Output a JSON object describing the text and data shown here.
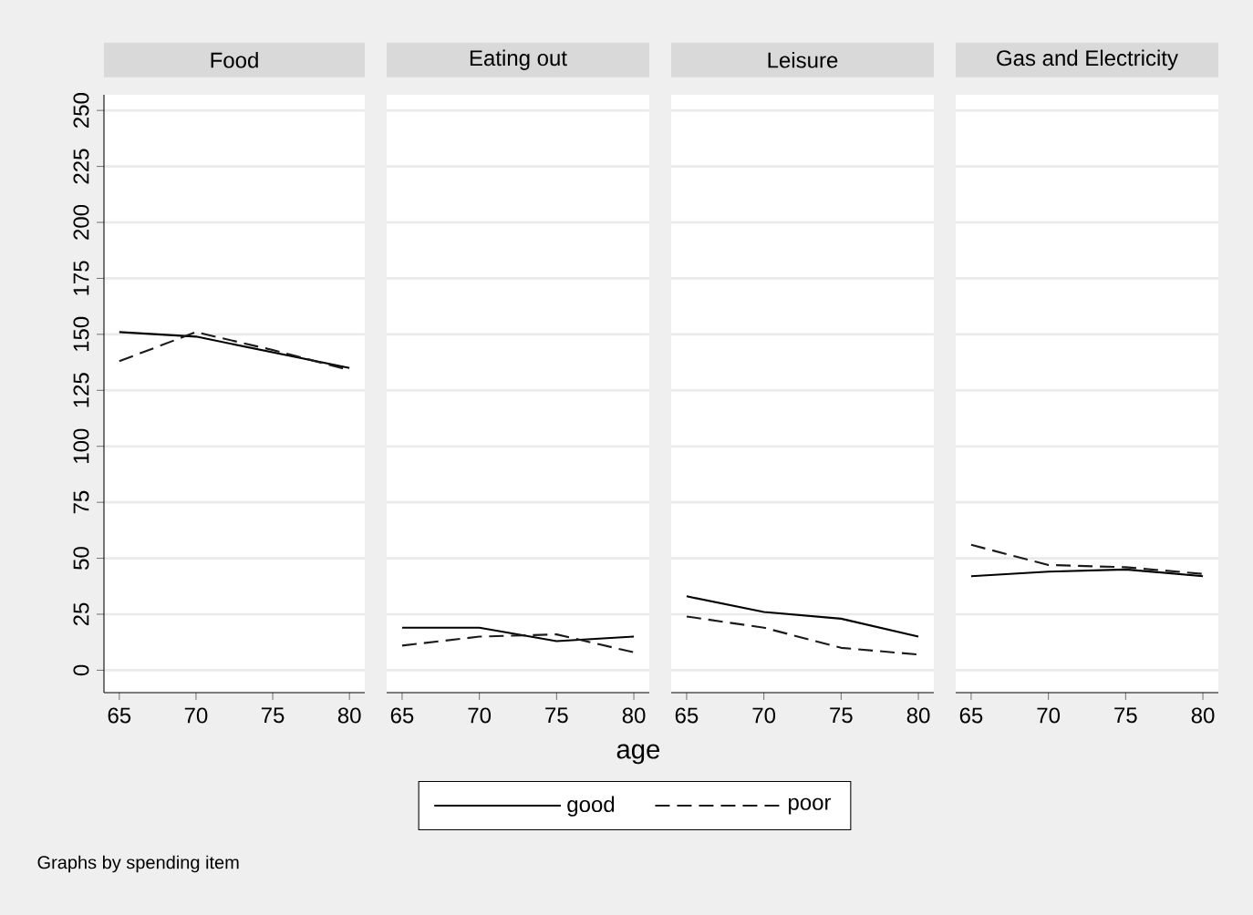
{
  "chart_data": [
    {
      "type": "line",
      "title": "Food",
      "x": [
        65,
        70,
        75,
        80
      ],
      "xlim": [
        64,
        81
      ],
      "xticks": [
        65,
        70,
        75,
        80
      ],
      "ylim": [
        -10,
        257
      ],
      "yticks": [
        0,
        25,
        50,
        75,
        100,
        125,
        150,
        175,
        200,
        225,
        250
      ],
      "grid": "y",
      "legend": "bottom",
      "annotations": [
        "Graphs by spending item"
      ],
      "series": [
        {
          "name": "good",
          "color": "#000000",
          "line_style": "solid",
          "values": [
            151,
            149,
            142,
            135
          ]
        },
        {
          "name": "poor",
          "color": "#1a1a1a",
          "line_style": "dashed",
          "values": [
            138,
            151,
            143,
            134
          ]
        }
      ]
    },
    {
      "type": "line",
      "title": "Eating out",
      "xlabel": "age",
      "x": [
        65,
        70,
        75,
        80
      ],
      "xlim": [
        64,
        81
      ],
      "xticks": [
        65,
        70,
        75,
        80
      ],
      "ylim": [
        -10,
        257
      ],
      "yticks": [
        0,
        25,
        50,
        75,
        100,
        125,
        150,
        175,
        200,
        225,
        250
      ],
      "grid": "y",
      "tick_labels": "x",
      "series": [
        {
          "color": "#000000",
          "line_style": "solid",
          "values": [
            19,
            19,
            13,
            15
          ]
        },
        {
          "color": "#1a1a1a",
          "line_style": "dashed",
          "values": [
            11,
            15,
            16,
            8
          ]
        }
      ]
    },
    {
      "type": "line",
      "title": "Leisure",
      "x": [
        65,
        70,
        75,
        80
      ],
      "xlim": [
        64,
        81
      ],
      "xticks": [
        65,
        70,
        75,
        80
      ],
      "ylim": [
        -10,
        257
      ],
      "yticks": [
        0,
        25,
        50,
        75,
        100,
        125,
        150,
        175,
        200,
        225,
        250
      ],
      "grid": "y",
      "tick_labels": "x",
      "series": [
        {
          "color": "#000000",
          "line_style": "solid",
          "values": [
            33,
            26,
            23,
            15
          ]
        },
        {
          "color": "#1a1a1a",
          "line_style": "dashed",
          "values": [
            24,
            19,
            10,
            7
          ]
        }
      ]
    },
    {
      "type": "line",
      "title": "Gas and Electricity",
      "x": [
        65,
        70,
        75,
        80
      ],
      "xlim": [
        64,
        81
      ],
      "xticks": [
        65,
        70,
        75,
        80
      ],
      "ylim": [
        -10,
        257
      ],
      "yticks": [
        0,
        25,
        50,
        75,
        100,
        125,
        150,
        175,
        200,
        225,
        250
      ],
      "grid": "y",
      "tick_labels": "x",
      "series": [
        {
          "color": "#000000",
          "line_style": "solid",
          "values": [
            42,
            44,
            45,
            42
          ]
        },
        {
          "color": "#1a1a1a",
          "line_style": "dashed",
          "values": [
            56,
            47,
            46,
            43
          ]
        }
      ]
    }
  ]
}
